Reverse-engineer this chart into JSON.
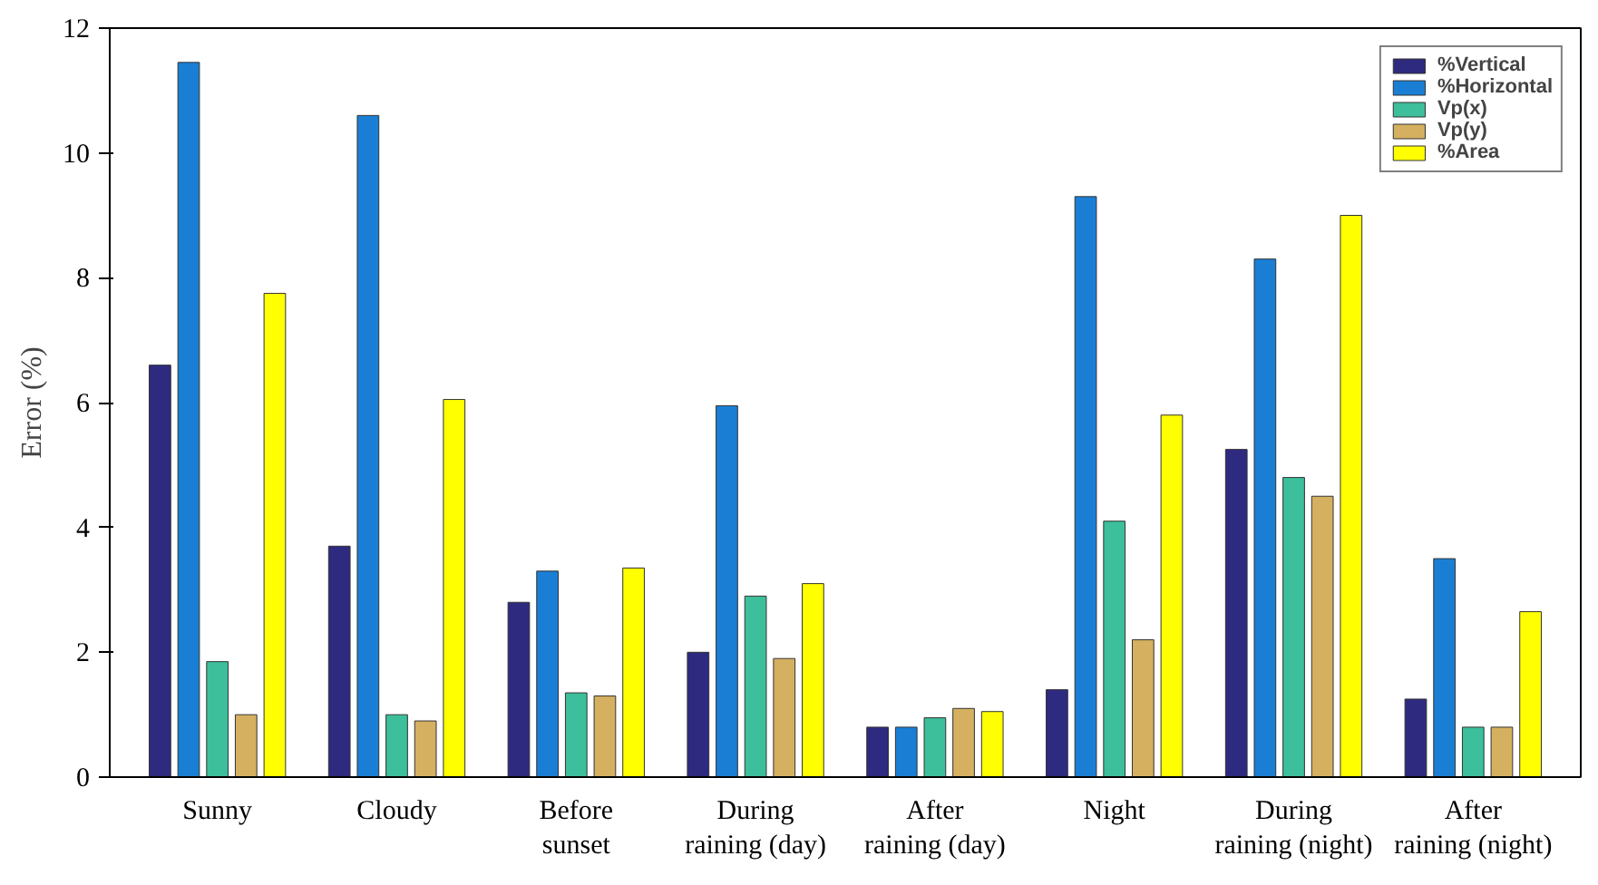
{
  "chart_data": {
    "type": "bar",
    "ylabel": "Error (%)",
    "categories": [
      "Sunny",
      "Cloudy",
      "Before\nsunset",
      "During\nraining (day)",
      "After\nraining (day)",
      "Night",
      "During\nraining (night)",
      "After\nraining (night)"
    ],
    "series": [
      {
        "name": "%Vertical",
        "color": "#2e2a7f",
        "values": [
          6.6,
          3.7,
          2.8,
          2.0,
          0.8,
          1.4,
          5.25,
          1.25
        ]
      },
      {
        "name": "%Horizontal",
        "color": "#1a7fd4",
        "values": [
          11.45,
          10.6,
          3.3,
          5.95,
          0.8,
          9.3,
          8.3,
          3.5
        ]
      },
      {
        "name": "Vp(x)",
        "color": "#3cbf9a",
        "values": [
          1.85,
          1.0,
          1.35,
          2.9,
          0.95,
          4.1,
          4.8,
          0.8
        ]
      },
      {
        "name": "Vp(y)",
        "color": "#d4b060",
        "values": [
          1.0,
          0.9,
          1.3,
          1.9,
          1.1,
          2.2,
          4.5,
          0.8
        ]
      },
      {
        "name": "%Area",
        "color": "#ffff00",
        "values": [
          7.75,
          6.05,
          3.35,
          3.1,
          1.05,
          5.8,
          9.0,
          2.65
        ]
      }
    ],
    "ylim": [
      0,
      12
    ],
    "yticks": [
      0,
      2,
      4,
      6,
      8,
      10,
      12
    ],
    "legend": "top right",
    "grid": false
  }
}
